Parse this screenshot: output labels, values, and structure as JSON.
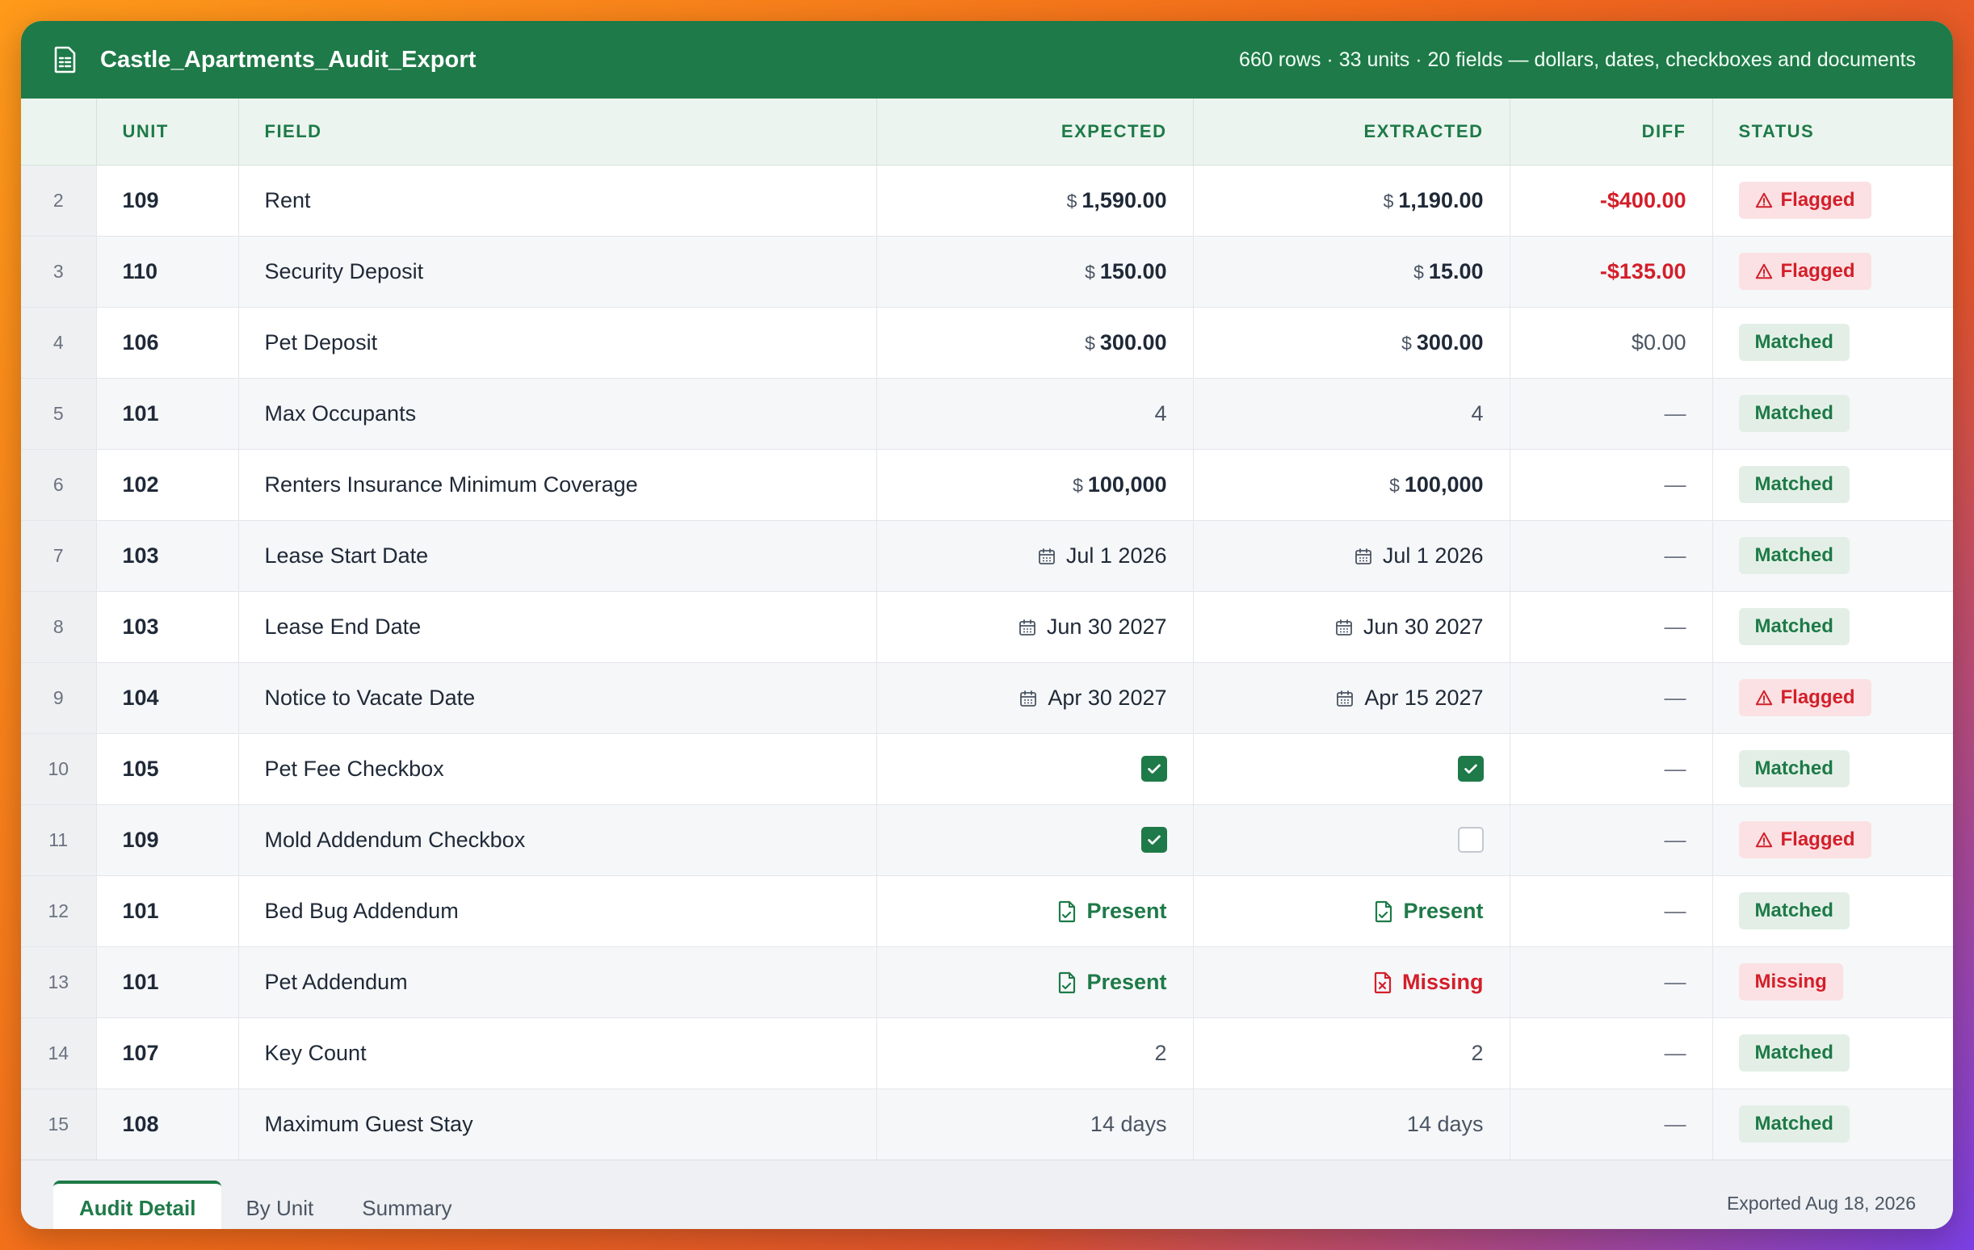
{
  "title": "Castle_Apartments_Audit_Export",
  "meta": "660 rows · 33 units · 20 fields — dollars, dates, checkboxes and documents",
  "columns": [
    "",
    "UNIT",
    "FIELD",
    "EXPECTED",
    "EXTRACTED",
    "DIFF",
    "STATUS"
  ],
  "rows": [
    {
      "idx": "2",
      "unit": "109",
      "field": "Rent",
      "expected": {
        "kind": "money",
        "cur": "$",
        "amt": "1,590.00"
      },
      "extracted": {
        "kind": "money",
        "cur": "$",
        "amt": "1,190.00"
      },
      "diff": {
        "kind": "neg",
        "text": "-$400.00"
      },
      "status": {
        "kind": "flagged",
        "label": "Flagged"
      }
    },
    {
      "idx": "3",
      "unit": "110",
      "field": "Security Deposit",
      "expected": {
        "kind": "money",
        "cur": "$",
        "amt": "150.00"
      },
      "extracted": {
        "kind": "money",
        "cur": "$",
        "amt": "15.00"
      },
      "diff": {
        "kind": "neg",
        "text": "-$135.00"
      },
      "status": {
        "kind": "flagged",
        "label": "Flagged"
      }
    },
    {
      "idx": "4",
      "unit": "106",
      "field": "Pet Deposit",
      "expected": {
        "kind": "money",
        "cur": "$",
        "amt": "300.00"
      },
      "extracted": {
        "kind": "money",
        "cur": "$",
        "amt": "300.00"
      },
      "diff": {
        "kind": "plain",
        "text": "$0.00"
      },
      "status": {
        "kind": "matched",
        "label": "Matched"
      }
    },
    {
      "idx": "5",
      "unit": "101",
      "field": "Max Occupants",
      "expected": {
        "kind": "text",
        "text": "4"
      },
      "extracted": {
        "kind": "text",
        "text": "4"
      },
      "diff": {
        "kind": "dash",
        "text": "—"
      },
      "status": {
        "kind": "matched",
        "label": "Matched"
      }
    },
    {
      "idx": "6",
      "unit": "102",
      "field": "Renters Insurance Minimum Coverage",
      "expected": {
        "kind": "money",
        "cur": "$",
        "amt": "100,000"
      },
      "extracted": {
        "kind": "money",
        "cur": "$",
        "amt": "100,000"
      },
      "diff": {
        "kind": "dash",
        "text": "—"
      },
      "status": {
        "kind": "matched",
        "label": "Matched"
      }
    },
    {
      "idx": "7",
      "unit": "103",
      "field": "Lease Start Date",
      "expected": {
        "kind": "date",
        "text": "Jul 1 2026"
      },
      "extracted": {
        "kind": "date",
        "text": "Jul 1 2026"
      },
      "diff": {
        "kind": "dash",
        "text": "—"
      },
      "status": {
        "kind": "matched",
        "label": "Matched"
      }
    },
    {
      "idx": "8",
      "unit": "103",
      "field": "Lease End Date",
      "expected": {
        "kind": "date",
        "text": "Jun 30 2027"
      },
      "extracted": {
        "kind": "date",
        "text": "Jun 30 2027"
      },
      "diff": {
        "kind": "dash",
        "text": "—"
      },
      "status": {
        "kind": "matched",
        "label": "Matched"
      }
    },
    {
      "idx": "9",
      "unit": "104",
      "field": "Notice to Vacate Date",
      "expected": {
        "kind": "date",
        "text": "Apr 30 2027"
      },
      "extracted": {
        "kind": "date",
        "text": "Apr 15 2027"
      },
      "diff": {
        "kind": "dash",
        "text": "—"
      },
      "status": {
        "kind": "flagged",
        "label": "Flagged"
      }
    },
    {
      "idx": "10",
      "unit": "105",
      "field": "Pet Fee Checkbox",
      "expected": {
        "kind": "check",
        "checked": true
      },
      "extracted": {
        "kind": "check",
        "checked": true
      },
      "diff": {
        "kind": "dash",
        "text": "—"
      },
      "status": {
        "kind": "matched",
        "label": "Matched"
      }
    },
    {
      "idx": "11",
      "unit": "109",
      "field": "Mold Addendum Checkbox",
      "expected": {
        "kind": "check",
        "checked": true
      },
      "extracted": {
        "kind": "check",
        "checked": false
      },
      "diff": {
        "kind": "dash",
        "text": "—"
      },
      "status": {
        "kind": "flagged",
        "label": "Flagged"
      }
    },
    {
      "idx": "12",
      "unit": "101",
      "field": "Bed Bug Addendum",
      "expected": {
        "kind": "doc",
        "present": true,
        "text": "Present"
      },
      "extracted": {
        "kind": "doc",
        "present": true,
        "text": "Present"
      },
      "diff": {
        "kind": "dash",
        "text": "—"
      },
      "status": {
        "kind": "matched",
        "label": "Matched"
      }
    },
    {
      "idx": "13",
      "unit": "101",
      "field": "Pet Addendum",
      "expected": {
        "kind": "doc",
        "present": true,
        "text": "Present"
      },
      "extracted": {
        "kind": "doc",
        "present": false,
        "text": "Missing"
      },
      "diff": {
        "kind": "dash",
        "text": "—"
      },
      "status": {
        "kind": "missing",
        "label": "Missing"
      }
    },
    {
      "idx": "14",
      "unit": "107",
      "field": "Key Count",
      "expected": {
        "kind": "text",
        "text": "2"
      },
      "extracted": {
        "kind": "text",
        "text": "2"
      },
      "diff": {
        "kind": "dash",
        "text": "—"
      },
      "status": {
        "kind": "matched",
        "label": "Matched"
      }
    },
    {
      "idx": "15",
      "unit": "108",
      "field": "Maximum Guest Stay",
      "expected": {
        "kind": "text",
        "text": "14 days"
      },
      "extracted": {
        "kind": "text",
        "text": "14 days"
      },
      "diff": {
        "kind": "dash",
        "text": "—"
      },
      "status": {
        "kind": "matched",
        "label": "Matched"
      }
    }
  ],
  "tabs": [
    {
      "label": "Audit Detail",
      "active": true
    },
    {
      "label": "By Unit",
      "active": false
    },
    {
      "label": "Summary",
      "active": false
    }
  ],
  "exported": "Exported Aug 18, 2026",
  "colors": {
    "brand": "#1e7a48",
    "flag": "#d31f2a",
    "header_bg": "#ebf4ee"
  },
  "icons": {
    "title": "spreadsheet-icon",
    "date": "calendar-icon",
    "doc_present": "document-icon",
    "doc_missing": "document-x-icon",
    "flag": "warning-triangle-icon",
    "check": "checkmark-icon"
  }
}
